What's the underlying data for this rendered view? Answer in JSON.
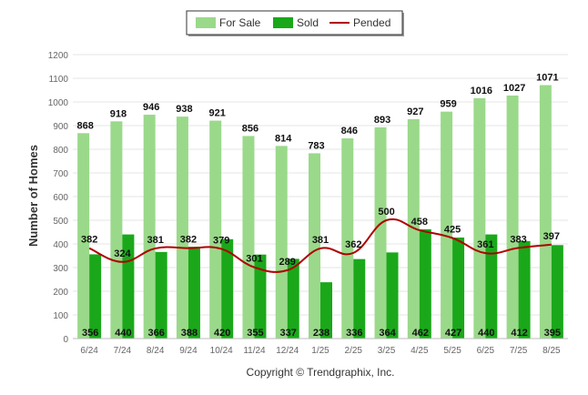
{
  "copyright": "Copyright © Trendgraphix, Inc.",
  "chart_data": {
    "type": "bar",
    "title": "",
    "xlabel": "",
    "ylabel": "Number of Homes",
    "ylim": [
      0,
      1200
    ],
    "yticks": [
      0,
      100,
      200,
      300,
      400,
      500,
      600,
      700,
      800,
      900,
      1000,
      1100,
      1200
    ],
    "grid": true,
    "legend_position": "top-center",
    "categories": [
      "6/24",
      "7/24",
      "8/24",
      "9/24",
      "10/24",
      "11/24",
      "12/24",
      "1/25",
      "2/25",
      "3/25",
      "4/25",
      "5/25",
      "6/25",
      "7/25",
      "8/25"
    ],
    "series": [
      {
        "name": "For Sale",
        "kind": "bar",
        "color": "#9ad98a",
        "values": [
          868,
          918,
          946,
          938,
          921,
          856,
          814,
          783,
          846,
          893,
          927,
          959,
          1016,
          1027,
          1071
        ]
      },
      {
        "name": "Sold",
        "kind": "bar",
        "color": "#1aa81a",
        "values": [
          356,
          440,
          366,
          388,
          420,
          355,
          337,
          238,
          336,
          364,
          462,
          427,
          440,
          412,
          395
        ]
      },
      {
        "name": "Pended",
        "kind": "line",
        "color": "#b00000",
        "values": [
          382,
          324,
          381,
          382,
          379,
          301,
          289,
          381,
          362,
          500,
          458,
          425,
          361,
          383,
          397
        ]
      }
    ]
  }
}
